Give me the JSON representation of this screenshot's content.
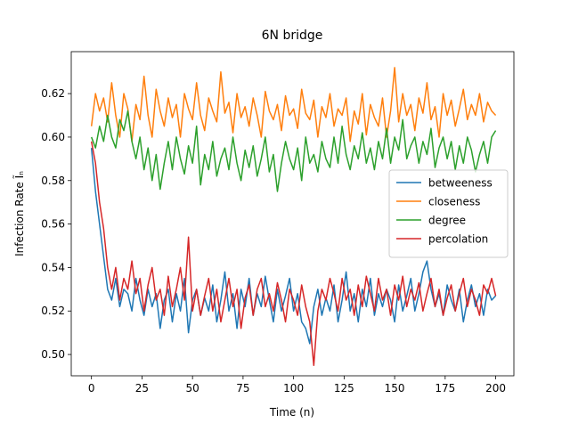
{
  "chart_data": {
    "type": "line",
    "title": "6N bridge",
    "xlabel": "Time (n)",
    "ylabel": "Infection Rate Ĩₙ",
    "x": [
      0,
      2,
      4,
      6,
      8,
      10,
      12,
      14,
      16,
      18,
      20,
      22,
      24,
      26,
      28,
      30,
      32,
      34,
      36,
      38,
      40,
      42,
      44,
      46,
      48,
      50,
      52,
      54,
      56,
      58,
      60,
      62,
      64,
      66,
      68,
      70,
      72,
      74,
      76,
      78,
      80,
      82,
      84,
      86,
      88,
      90,
      92,
      94,
      96,
      98,
      100,
      102,
      104,
      106,
      108,
      110,
      112,
      114,
      116,
      118,
      120,
      122,
      124,
      126,
      128,
      130,
      132,
      134,
      136,
      138,
      140,
      142,
      144,
      146,
      148,
      150,
      152,
      154,
      156,
      158,
      160,
      162,
      164,
      166,
      168,
      170,
      172,
      174,
      176,
      178,
      180,
      182,
      184,
      186,
      188,
      190,
      192,
      194,
      196,
      198,
      200
    ],
    "series": [
      {
        "name": "betweeness",
        "color": "#1f77b4",
        "values": [
          0.595,
          0.575,
          0.56,
          0.545,
          0.53,
          0.525,
          0.535,
          0.522,
          0.53,
          0.528,
          0.52,
          0.535,
          0.525,
          0.518,
          0.53,
          0.522,
          0.528,
          0.512,
          0.525,
          0.53,
          0.515,
          0.528,
          0.52,
          0.535,
          0.51,
          0.525,
          0.53,
          0.518,
          0.526,
          0.52,
          0.532,
          0.515,
          0.525,
          0.538,
          0.52,
          0.528,
          0.512,
          0.53,
          0.522,
          0.535,
          0.518,
          0.528,
          0.522,
          0.536,
          0.525,
          0.515,
          0.53,
          0.52,
          0.527,
          0.535,
          0.52,
          0.528,
          0.515,
          0.512,
          0.505,
          0.522,
          0.53,
          0.518,
          0.526,
          0.52,
          0.532,
          0.515,
          0.525,
          0.538,
          0.52,
          0.528,
          0.515,
          0.53,
          0.522,
          0.535,
          0.518,
          0.528,
          0.522,
          0.53,
          0.525,
          0.515,
          0.532,
          0.52,
          0.527,
          0.535,
          0.52,
          0.528,
          0.538,
          0.543,
          0.53,
          0.522,
          0.528,
          0.518,
          0.532,
          0.525,
          0.52,
          0.53,
          0.515,
          0.525,
          0.532,
          0.522,
          0.528,
          0.518,
          0.53,
          0.525,
          0.527
        ]
      },
      {
        "name": "closeness",
        "color": "#ff7f0e",
        "values": [
          0.605,
          0.62,
          0.612,
          0.618,
          0.607,
          0.625,
          0.61,
          0.6,
          0.62,
          0.613,
          0.598,
          0.615,
          0.608,
          0.628,
          0.61,
          0.6,
          0.622,
          0.612,
          0.605,
          0.618,
          0.609,
          0.615,
          0.6,
          0.62,
          0.613,
          0.608,
          0.625,
          0.61,
          0.603,
          0.618,
          0.612,
          0.607,
          0.63,
          0.611,
          0.616,
          0.602,
          0.62,
          0.609,
          0.614,
          0.605,
          0.618,
          0.61,
          0.6,
          0.621,
          0.612,
          0.608,
          0.615,
          0.603,
          0.619,
          0.61,
          0.613,
          0.604,
          0.622,
          0.611,
          0.608,
          0.617,
          0.6,
          0.614,
          0.609,
          0.62,
          0.605,
          0.613,
          0.61,
          0.618,
          0.598,
          0.612,
          0.606,
          0.62,
          0.601,
          0.615,
          0.609,
          0.605,
          0.618,
          0.6,
          0.612,
          0.632,
          0.607,
          0.62,
          0.61,
          0.615,
          0.603,
          0.618,
          0.611,
          0.625,
          0.608,
          0.614,
          0.6,
          0.62,
          0.61,
          0.617,
          0.605,
          0.613,
          0.622,
          0.608,
          0.615,
          0.61,
          0.62,
          0.607,
          0.616,
          0.612,
          0.61
        ]
      },
      {
        "name": "degree",
        "color": "#2ca02c",
        "values": [
          0.6,
          0.595,
          0.605,
          0.598,
          0.61,
          0.6,
          0.595,
          0.608,
          0.603,
          0.612,
          0.598,
          0.59,
          0.6,
          0.585,
          0.595,
          0.58,
          0.592,
          0.576,
          0.588,
          0.598,
          0.585,
          0.6,
          0.59,
          0.583,
          0.596,
          0.588,
          0.605,
          0.578,
          0.592,
          0.585,
          0.598,
          0.582,
          0.59,
          0.595,
          0.585,
          0.6,
          0.588,
          0.58,
          0.594,
          0.586,
          0.596,
          0.582,
          0.59,
          0.6,
          0.584,
          0.592,
          0.575,
          0.588,
          0.598,
          0.59,
          0.585,
          0.595,
          0.58,
          0.6,
          0.588,
          0.592,
          0.584,
          0.598,
          0.59,
          0.586,
          0.6,
          0.588,
          0.605,
          0.592,
          0.585,
          0.596,
          0.59,
          0.602,
          0.588,
          0.595,
          0.585,
          0.598,
          0.59,
          0.604,
          0.588,
          0.6,
          0.594,
          0.608,
          0.59,
          0.596,
          0.6,
          0.588,
          0.598,
          0.592,
          0.604,
          0.586,
          0.595,
          0.6,
          0.59,
          0.598,
          0.585,
          0.596,
          0.588,
          0.6,
          0.594,
          0.584,
          0.592,
          0.598,
          0.588,
          0.6,
          0.603
        ]
      },
      {
        "name": "percolation",
        "color": "#d62728",
        "values": [
          0.598,
          0.588,
          0.57,
          0.558,
          0.54,
          0.53,
          0.54,
          0.525,
          0.535,
          0.53,
          0.543,
          0.528,
          0.535,
          0.52,
          0.532,
          0.54,
          0.525,
          0.53,
          0.518,
          0.536,
          0.522,
          0.53,
          0.54,
          0.525,
          0.554,
          0.52,
          0.53,
          0.518,
          0.527,
          0.535,
          0.52,
          0.53,
          0.515,
          0.525,
          0.535,
          0.522,
          0.53,
          0.512,
          0.526,
          0.532,
          0.518,
          0.53,
          0.535,
          0.522,
          0.528,
          0.52,
          0.533,
          0.525,
          0.515,
          0.53,
          0.525,
          0.518,
          0.532,
          0.522,
          0.515,
          0.495,
          0.52,
          0.53,
          0.525,
          0.535,
          0.528,
          0.52,
          0.535,
          0.525,
          0.53,
          0.518,
          0.532,
          0.522,
          0.536,
          0.528,
          0.52,
          0.535,
          0.525,
          0.53,
          0.518,
          0.532,
          0.525,
          0.536,
          0.522,
          0.53,
          0.525,
          0.533,
          0.52,
          0.528,
          0.535,
          0.522,
          0.53,
          0.518,
          0.526,
          0.532,
          0.52,
          0.528,
          0.535,
          0.522,
          0.53,
          0.525,
          0.518,
          0.532,
          0.528,
          0.535,
          0.527
        ]
      }
    ],
    "xlim": [
      -10,
      209
    ],
    "ylim": [
      0.4902,
      0.6393
    ],
    "xticks": [
      0,
      25,
      50,
      75,
      100,
      125,
      150,
      175,
      200
    ],
    "yticks": [
      {
        "value": 0.5,
        "label": "0.50"
      },
      0.52,
      0.54,
      0.56,
      0.58,
      {
        "value": 0.6,
        "label": "0.60"
      },
      0.62
    ],
    "legend": "center right",
    "grid": false
  }
}
